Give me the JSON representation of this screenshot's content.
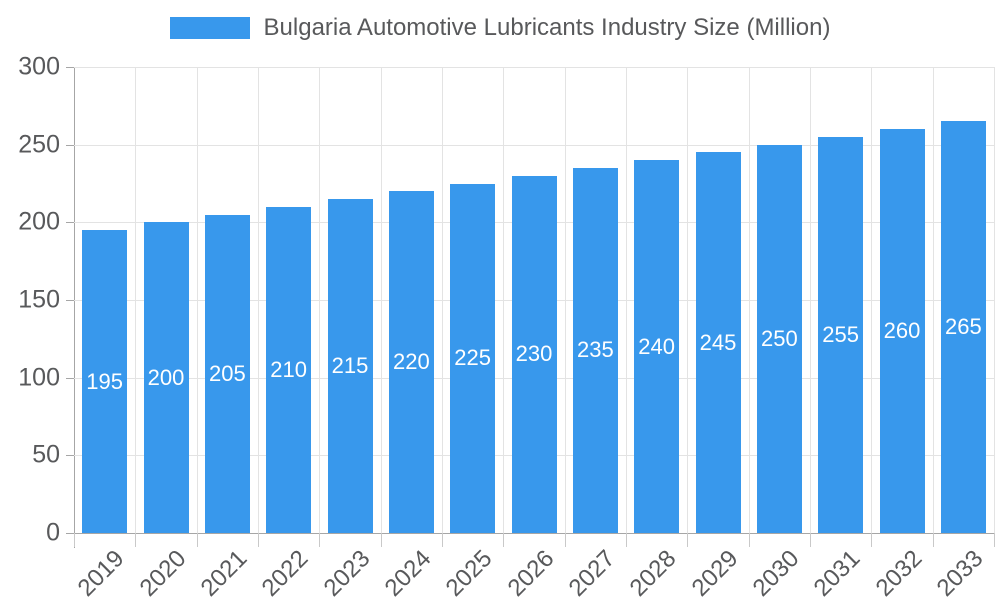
{
  "legend": {
    "label": "Bulgaria Automotive Lubricants Industry Size (Million)"
  },
  "colors": {
    "bar": "#3898ec",
    "grid": "#e3e3e3",
    "axis": "#a6a6a6",
    "xtick": "#c9c9c9",
    "text": "#58595b",
    "bar_label": "#ffffff",
    "background": "#ffffff"
  },
  "chart_data": {
    "type": "bar",
    "title": "Bulgaria Automotive Lubricants Industry Size (Million)",
    "categories": [
      "2019",
      "2020",
      "2021",
      "2022",
      "2023",
      "2024",
      "2025",
      "2026",
      "2027",
      "2028",
      "2029",
      "2030",
      "2031",
      "2032",
      "2033"
    ],
    "values": [
      195,
      200,
      205,
      210,
      215,
      220,
      225,
      230,
      235,
      240,
      245,
      250,
      255,
      260,
      265
    ],
    "xlabel": "",
    "ylabel": "",
    "ylim": [
      0,
      300
    ],
    "yticks": [
      0,
      50,
      100,
      150,
      200,
      250,
      300
    ],
    "grid": true,
    "vertical_grid": true,
    "legend_position": "top",
    "bar_labels": "values shown in white at mid-height of each bar",
    "x_label_rotation_deg": 45
  }
}
